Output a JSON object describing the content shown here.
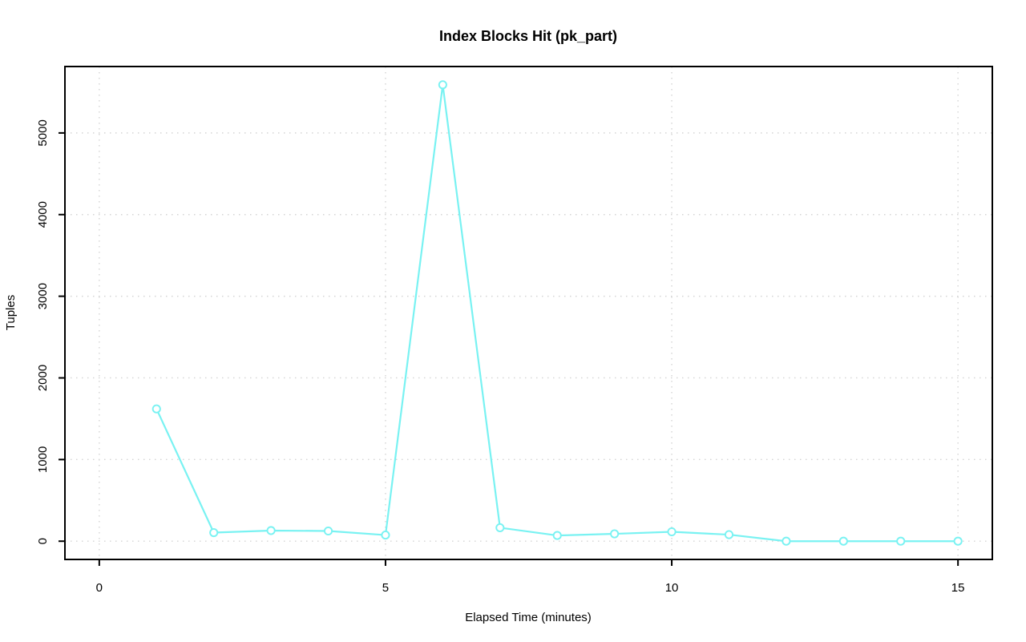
{
  "chart_data": {
    "type": "line",
    "title": "Index Blocks Hit (pk_part)",
    "xlabel": "Elapsed Time (minutes)",
    "ylabel": "Tuples",
    "series": [
      {
        "name": "index blocks hit",
        "x": [
          1,
          2,
          3,
          4,
          5,
          6,
          7,
          8,
          9,
          10,
          11,
          12,
          13,
          14,
          15
        ],
        "values": [
          1620,
          105,
          130,
          125,
          75,
          5590,
          165,
          70,
          90,
          115,
          80,
          0,
          0,
          0,
          0
        ]
      }
    ],
    "xlim": [
      0,
      15
    ],
    "ylim": [
      0,
      5590
    ],
    "x_ticks": [
      0,
      5,
      10,
      15
    ],
    "y_ticks": [
      0,
      1000,
      2000,
      3000,
      4000,
      5000
    ],
    "grid": "dotted",
    "legend_position": "none",
    "marker": "open-circle",
    "line_color": "#79f2f2",
    "grid_color": "#d4d4d4",
    "axis_color": "#000000",
    "background_color": "#ffffff"
  }
}
